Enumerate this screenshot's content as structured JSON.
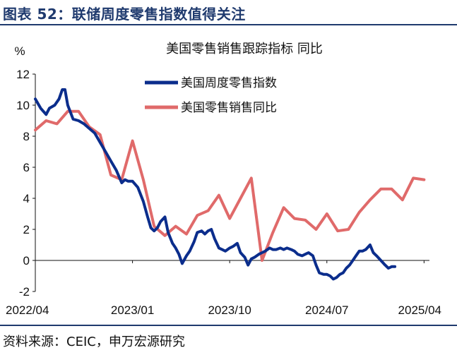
{
  "figure": {
    "title": "图表 52：联储周度零售指数值得关注",
    "source": "资料来源：CEIC，申万宏源研究"
  },
  "chart_data": {
    "type": "line",
    "title": "美国零售销售跟踪指标 同比",
    "ylabel": "%",
    "ylim": [
      -2,
      12
    ],
    "yticks": [
      -2,
      0,
      2,
      4,
      6,
      8,
      10,
      12
    ],
    "xlim": [
      0,
      36.5
    ],
    "xticks": [
      {
        "label": "2022/04",
        "x": 0
      },
      {
        "label": "2023/01",
        "x": 9
      },
      {
        "label": "2023/10",
        "x": 18
      },
      {
        "label": "2024/07",
        "x": 27
      },
      {
        "label": "2025/04",
        "x": 36
      }
    ],
    "legend_position": "top-center",
    "series": [
      {
        "name": "美国周度零售指数",
        "color": "#0b2d8c",
        "points": [
          [
            0,
            10.4
          ],
          [
            0.5,
            9.8
          ],
          [
            1,
            9.4
          ],
          [
            1.3,
            9.8
          ],
          [
            1.8,
            10.0
          ],
          [
            2.2,
            10.4
          ],
          [
            2.5,
            11.0
          ],
          [
            2.75,
            11.0
          ],
          [
            3,
            10.0
          ],
          [
            3.5,
            9.1
          ],
          [
            4,
            9.0
          ],
          [
            4.5,
            8.8
          ],
          [
            5,
            8.5
          ],
          [
            5.5,
            8.2
          ],
          [
            6,
            7.6
          ],
          [
            6.5,
            7.0
          ],
          [
            7,
            6.4
          ],
          [
            7.5,
            5.8
          ],
          [
            8,
            5.0
          ],
          [
            8.3,
            5.2
          ],
          [
            8.6,
            5.1
          ],
          [
            9,
            5.1
          ],
          [
            9.5,
            4.7
          ],
          [
            10,
            3.8
          ],
          [
            10.4,
            2.8
          ],
          [
            10.7,
            2.1
          ],
          [
            11,
            1.9
          ],
          [
            11.3,
            2.1
          ],
          [
            11.6,
            2.5
          ],
          [
            12,
            2.8
          ],
          [
            12.3,
            1.8
          ],
          [
            12.7,
            1.1
          ],
          [
            13,
            0.8
          ],
          [
            13.3,
            0.4
          ],
          [
            13.6,
            -0.2
          ],
          [
            14,
            0.3
          ],
          [
            14.3,
            0.6
          ],
          [
            14.7,
            1.2
          ],
          [
            15,
            1.8
          ],
          [
            15.4,
            1.9
          ],
          [
            15.7,
            1.7
          ],
          [
            16,
            1.9
          ],
          [
            16.3,
            2.0
          ],
          [
            16.6,
            1.4
          ],
          [
            17,
            0.8
          ],
          [
            17.3,
            0.7
          ],
          [
            17.6,
            0.6
          ],
          [
            18,
            0.8
          ],
          [
            18.3,
            0.9
          ],
          [
            18.7,
            1.1
          ],
          [
            19,
            0.5
          ],
          [
            19.4,
            0.2
          ],
          [
            19.7,
            -0.3
          ],
          [
            20,
            0.1
          ],
          [
            20.3,
            0.2
          ],
          [
            20.7,
            0.4
          ],
          [
            21,
            0.5
          ],
          [
            21.3,
            0.6
          ],
          [
            21.7,
            0.8
          ],
          [
            22,
            0.7
          ],
          [
            22.3,
            0.7
          ],
          [
            22.7,
            0.8
          ],
          [
            23,
            0.7
          ],
          [
            23.3,
            0.8
          ],
          [
            23.7,
            0.7
          ],
          [
            24,
            0.6
          ],
          [
            24.3,
            0.4
          ],
          [
            24.7,
            0.3
          ],
          [
            25,
            0.4
          ],
          [
            25.3,
            0.5
          ],
          [
            25.7,
            0.3
          ],
          [
            26,
            -0.3
          ],
          [
            26.3,
            -0.8
          ],
          [
            26.7,
            -0.9
          ],
          [
            27,
            -0.9
          ],
          [
            27.3,
            -1.0
          ],
          [
            27.6,
            -1.2
          ],
          [
            27.9,
            -1.1
          ],
          [
            28.2,
            -0.9
          ],
          [
            28.5,
            -0.8
          ],
          [
            28.8,
            -0.5
          ],
          [
            29.1,
            -0.3
          ],
          [
            29.4,
            0.0
          ],
          [
            29.7,
            0.3
          ],
          [
            30,
            0.6
          ],
          [
            30.3,
            0.6
          ],
          [
            30.6,
            0.7
          ],
          [
            31,
            1.0
          ],
          [
            31.3,
            0.5
          ],
          [
            31.6,
            0.3
          ],
          [
            32,
            0.0
          ],
          [
            32.4,
            -0.3
          ],
          [
            32.7,
            -0.5
          ],
          [
            33,
            -0.4
          ],
          [
            33.3,
            -0.4
          ]
        ]
      },
      {
        "name": "美国零售销售同比",
        "color": "#e06a6a",
        "points": [
          [
            0,
            8.4
          ],
          [
            1,
            9.0
          ],
          [
            2,
            8.8
          ],
          [
            3,
            9.6
          ],
          [
            4,
            9.6
          ],
          [
            5,
            8.6
          ],
          [
            6,
            8.1
          ],
          [
            7,
            5.5
          ],
          [
            8,
            5.2
          ],
          [
            9,
            7.7
          ],
          [
            10,
            5.2
          ],
          [
            11,
            2.2
          ],
          [
            12,
            1.6
          ],
          [
            13,
            2.2
          ],
          [
            14,
            1.7
          ],
          [
            15,
            2.9
          ],
          [
            16,
            3.2
          ],
          [
            17,
            4.2
          ],
          [
            18,
            2.7
          ],
          [
            19,
            4.0
          ],
          [
            20,
            5.3
          ],
          [
            21,
            0.0
          ],
          [
            22,
            1.8
          ],
          [
            23,
            3.4
          ],
          [
            24,
            2.7
          ],
          [
            25,
            2.6
          ],
          [
            26,
            2.0
          ],
          [
            27,
            3.0
          ],
          [
            28,
            1.9
          ],
          [
            29,
            2.0
          ],
          [
            30,
            3.1
          ],
          [
            31,
            3.9
          ],
          [
            32,
            4.6
          ],
          [
            33,
            4.6
          ],
          [
            34,
            3.9
          ],
          [
            35,
            5.3
          ],
          [
            36,
            5.2
          ]
        ]
      }
    ]
  }
}
